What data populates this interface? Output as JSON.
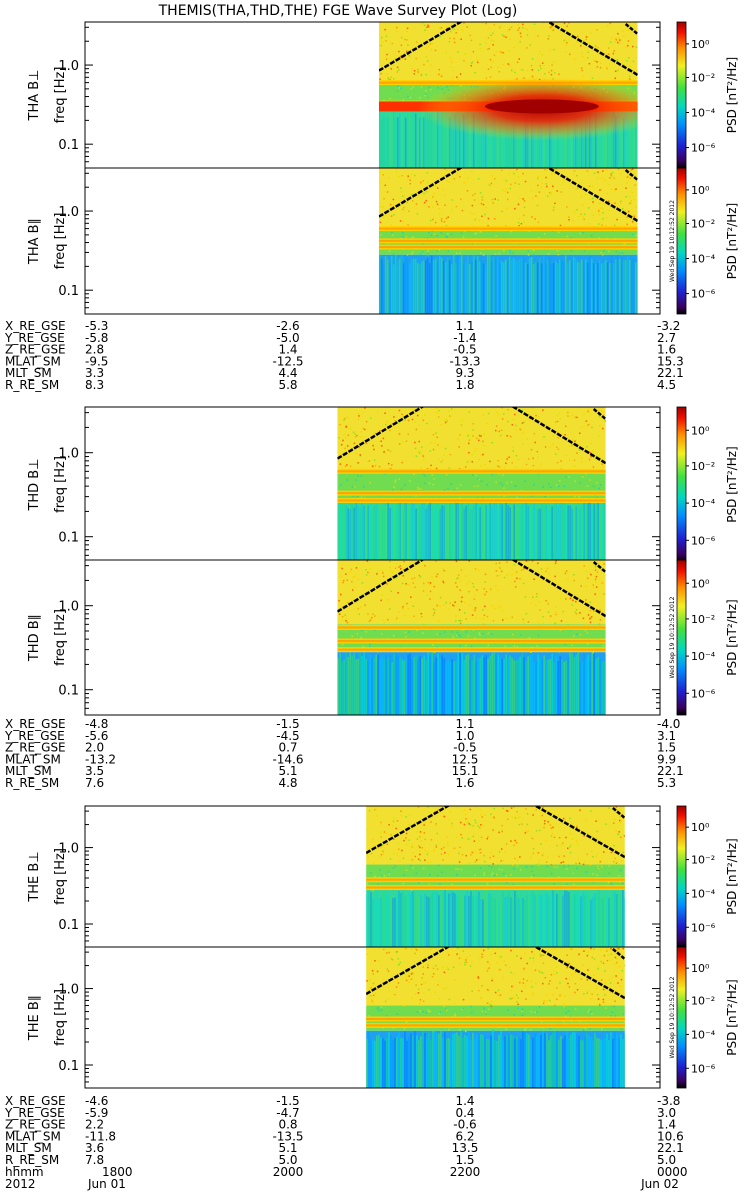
{
  "title": "THEMIS(THA,THD,THE) FGE Wave Survey Plot (Log)",
  "colorbar": {
    "label": "PSD [nT²/Hz]",
    "ticks": [
      "10⁰",
      "10⁻²",
      "10⁻⁴",
      "10⁻⁶"
    ],
    "stamp": "Wed Sep 19 10:12:52 2012"
  },
  "freq_ticks": [
    "1.0",
    "0.1"
  ],
  "chart_data": {
    "type": "heatmap",
    "y_scale": "log",
    "ylabel": "freq [Hz]",
    "ylim": [
      0.05,
      3.5
    ],
    "x_range": [
      "2012-06-01 18:00",
      "2012-06-02 00:00"
    ],
    "x_ticks": [
      {
        "hhmm": "1800",
        "date": "Jun 01"
      },
      {
        "hhmm": "2000",
        "date": ""
      },
      {
        "hhmm": "2200",
        "date": ""
      },
      {
        "hhmm": "0000",
        "date": "Jun 02"
      }
    ],
    "x_tick_header": {
      "hhmm": "hhmm",
      "year": "2012"
    },
    "probes": [
      {
        "name": "THA",
        "panels": [
          {
            "label": "THA B⊥",
            "data_start": "2012-06-01 21:04",
            "data_end": "2012-06-01 23:46",
            "features": {
              "intense_band_hz": 0.3,
              "band_hz": [
                0.33,
                0.6
              ],
              "curves": true
            }
          },
          {
            "label": "THA B∥",
            "data_start": "2012-06-01 21:04",
            "data_end": "2012-06-01 23:46",
            "features": {
              "band_hz": [
                0.35,
                0.42,
                0.6
              ],
              "curves": true
            }
          }
        ],
        "ephemeris": [
          {
            "name": "X_RE_GSE",
            "values": [
              "-5.3",
              "-2.6",
              "1.1",
              "-3.2"
            ]
          },
          {
            "name": "Y_RE_GSE",
            "values": [
              "-5.8",
              "-5.0",
              "-1.4",
              "2.7"
            ]
          },
          {
            "name": "Z_RE_GSE",
            "values": [
              "2.8",
              "1.4",
              "-0.5",
              "1.6"
            ]
          },
          {
            "name": "MLAT_SM",
            "values": [
              "-9.5",
              "-12.5",
              "-13.3",
              "15.3"
            ]
          },
          {
            "name": "MLT_SM",
            "values": [
              "3.3",
              "4.4",
              "9.3",
              "22.1"
            ]
          },
          {
            "name": "R_RE_SM",
            "values": [
              "8.3",
              "5.8",
              "1.8",
              "4.5"
            ]
          }
        ]
      },
      {
        "name": "THD",
        "panels": [
          {
            "label": "THD B⊥",
            "data_start": "2012-06-01 20:38",
            "data_end": "2012-06-01 23:26",
            "features": {
              "band_hz": [
                0.27,
                0.33,
                0.6
              ],
              "curves": true
            }
          },
          {
            "label": "THD B∥",
            "data_start": "2012-06-01 20:38",
            "data_end": "2012-06-01 23:26",
            "features": {
              "band_hz": [
                0.3,
                0.38,
                0.55
              ],
              "curves": true
            }
          }
        ],
        "ephemeris": [
          {
            "name": "X_RE_GSE",
            "values": [
              "-4.8",
              "-1.5",
              "1.1",
              "-4.0"
            ]
          },
          {
            "name": "Y_RE_GSE",
            "values": [
              "-5.6",
              "-4.5",
              "1.0",
              "3.1"
            ]
          },
          {
            "name": "Z_RE_GSE",
            "values": [
              "2.0",
              "0.7",
              "-0.5",
              "1.5"
            ]
          },
          {
            "name": "MLAT_SM",
            "values": [
              "-13.2",
              "-14.6",
              "12.5",
              "9.9"
            ]
          },
          {
            "name": "MLT_SM",
            "values": [
              "3.5",
              "5.1",
              "15.1",
              "22.1"
            ]
          },
          {
            "name": "R_RE_SM",
            "values": [
              "7.6",
              "4.8",
              "1.6",
              "5.3"
            ]
          }
        ]
      },
      {
        "name": "THE",
        "panels": [
          {
            "label": "THE B⊥",
            "data_start": "2012-06-01 20:56",
            "data_end": "2012-06-01 23:38",
            "features": {
              "band_hz": [
                0.3,
                0.38
              ],
              "curves": true
            }
          },
          {
            "label": "THE B∥",
            "data_start": "2012-06-01 20:56",
            "data_end": "2012-06-01 23:38",
            "features": {
              "band_hz": [
                0.33,
                0.4
              ],
              "curves": true
            }
          }
        ],
        "ephemeris": [
          {
            "name": "X_RE_GSE",
            "values": [
              "-4.6",
              "-1.5",
              "1.4",
              "-3.8"
            ]
          },
          {
            "name": "Y_RE_GSE",
            "values": [
              "-5.9",
              "-4.7",
              "0.4",
              "3.0"
            ]
          },
          {
            "name": "Z_RE_GSE",
            "values": [
              "2.2",
              "0.8",
              "-0.6",
              "1.4"
            ]
          },
          {
            "name": "MLAT_SM",
            "values": [
              "-11.8",
              "-13.5",
              "6.2",
              "10.6"
            ]
          },
          {
            "name": "MLT_SM",
            "values": [
              "3.6",
              "5.1",
              "13.5",
              "22.1"
            ]
          },
          {
            "name": "R_RE_SM",
            "values": [
              "7.8",
              "5.0",
              "1.5",
              "5.0"
            ]
          }
        ]
      }
    ]
  }
}
